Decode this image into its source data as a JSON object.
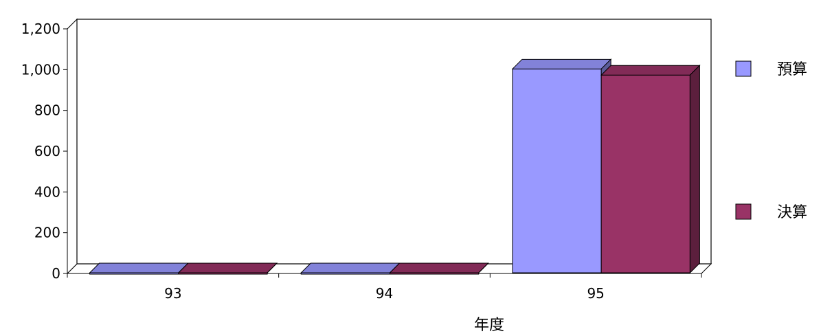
{
  "chart_data": {
    "type": "bar",
    "title": "",
    "xlabel": "年度",
    "ylabel": "",
    "categories": [
      "93",
      "94",
      "95"
    ],
    "series": [
      {
        "name": "預算",
        "values": [
          0,
          0,
          1000
        ],
        "color": "#9999ff"
      },
      {
        "name": "決算",
        "values": [
          0,
          0,
          970
        ],
        "color": "#993366"
      }
    ],
    "ylim": [
      0,
      1200
    ],
    "yticks": [
      "0",
      "200",
      "400",
      "600",
      "800",
      "1,000",
      "1,200"
    ],
    "grid": true,
    "legend_position": "right",
    "style": "3d"
  }
}
